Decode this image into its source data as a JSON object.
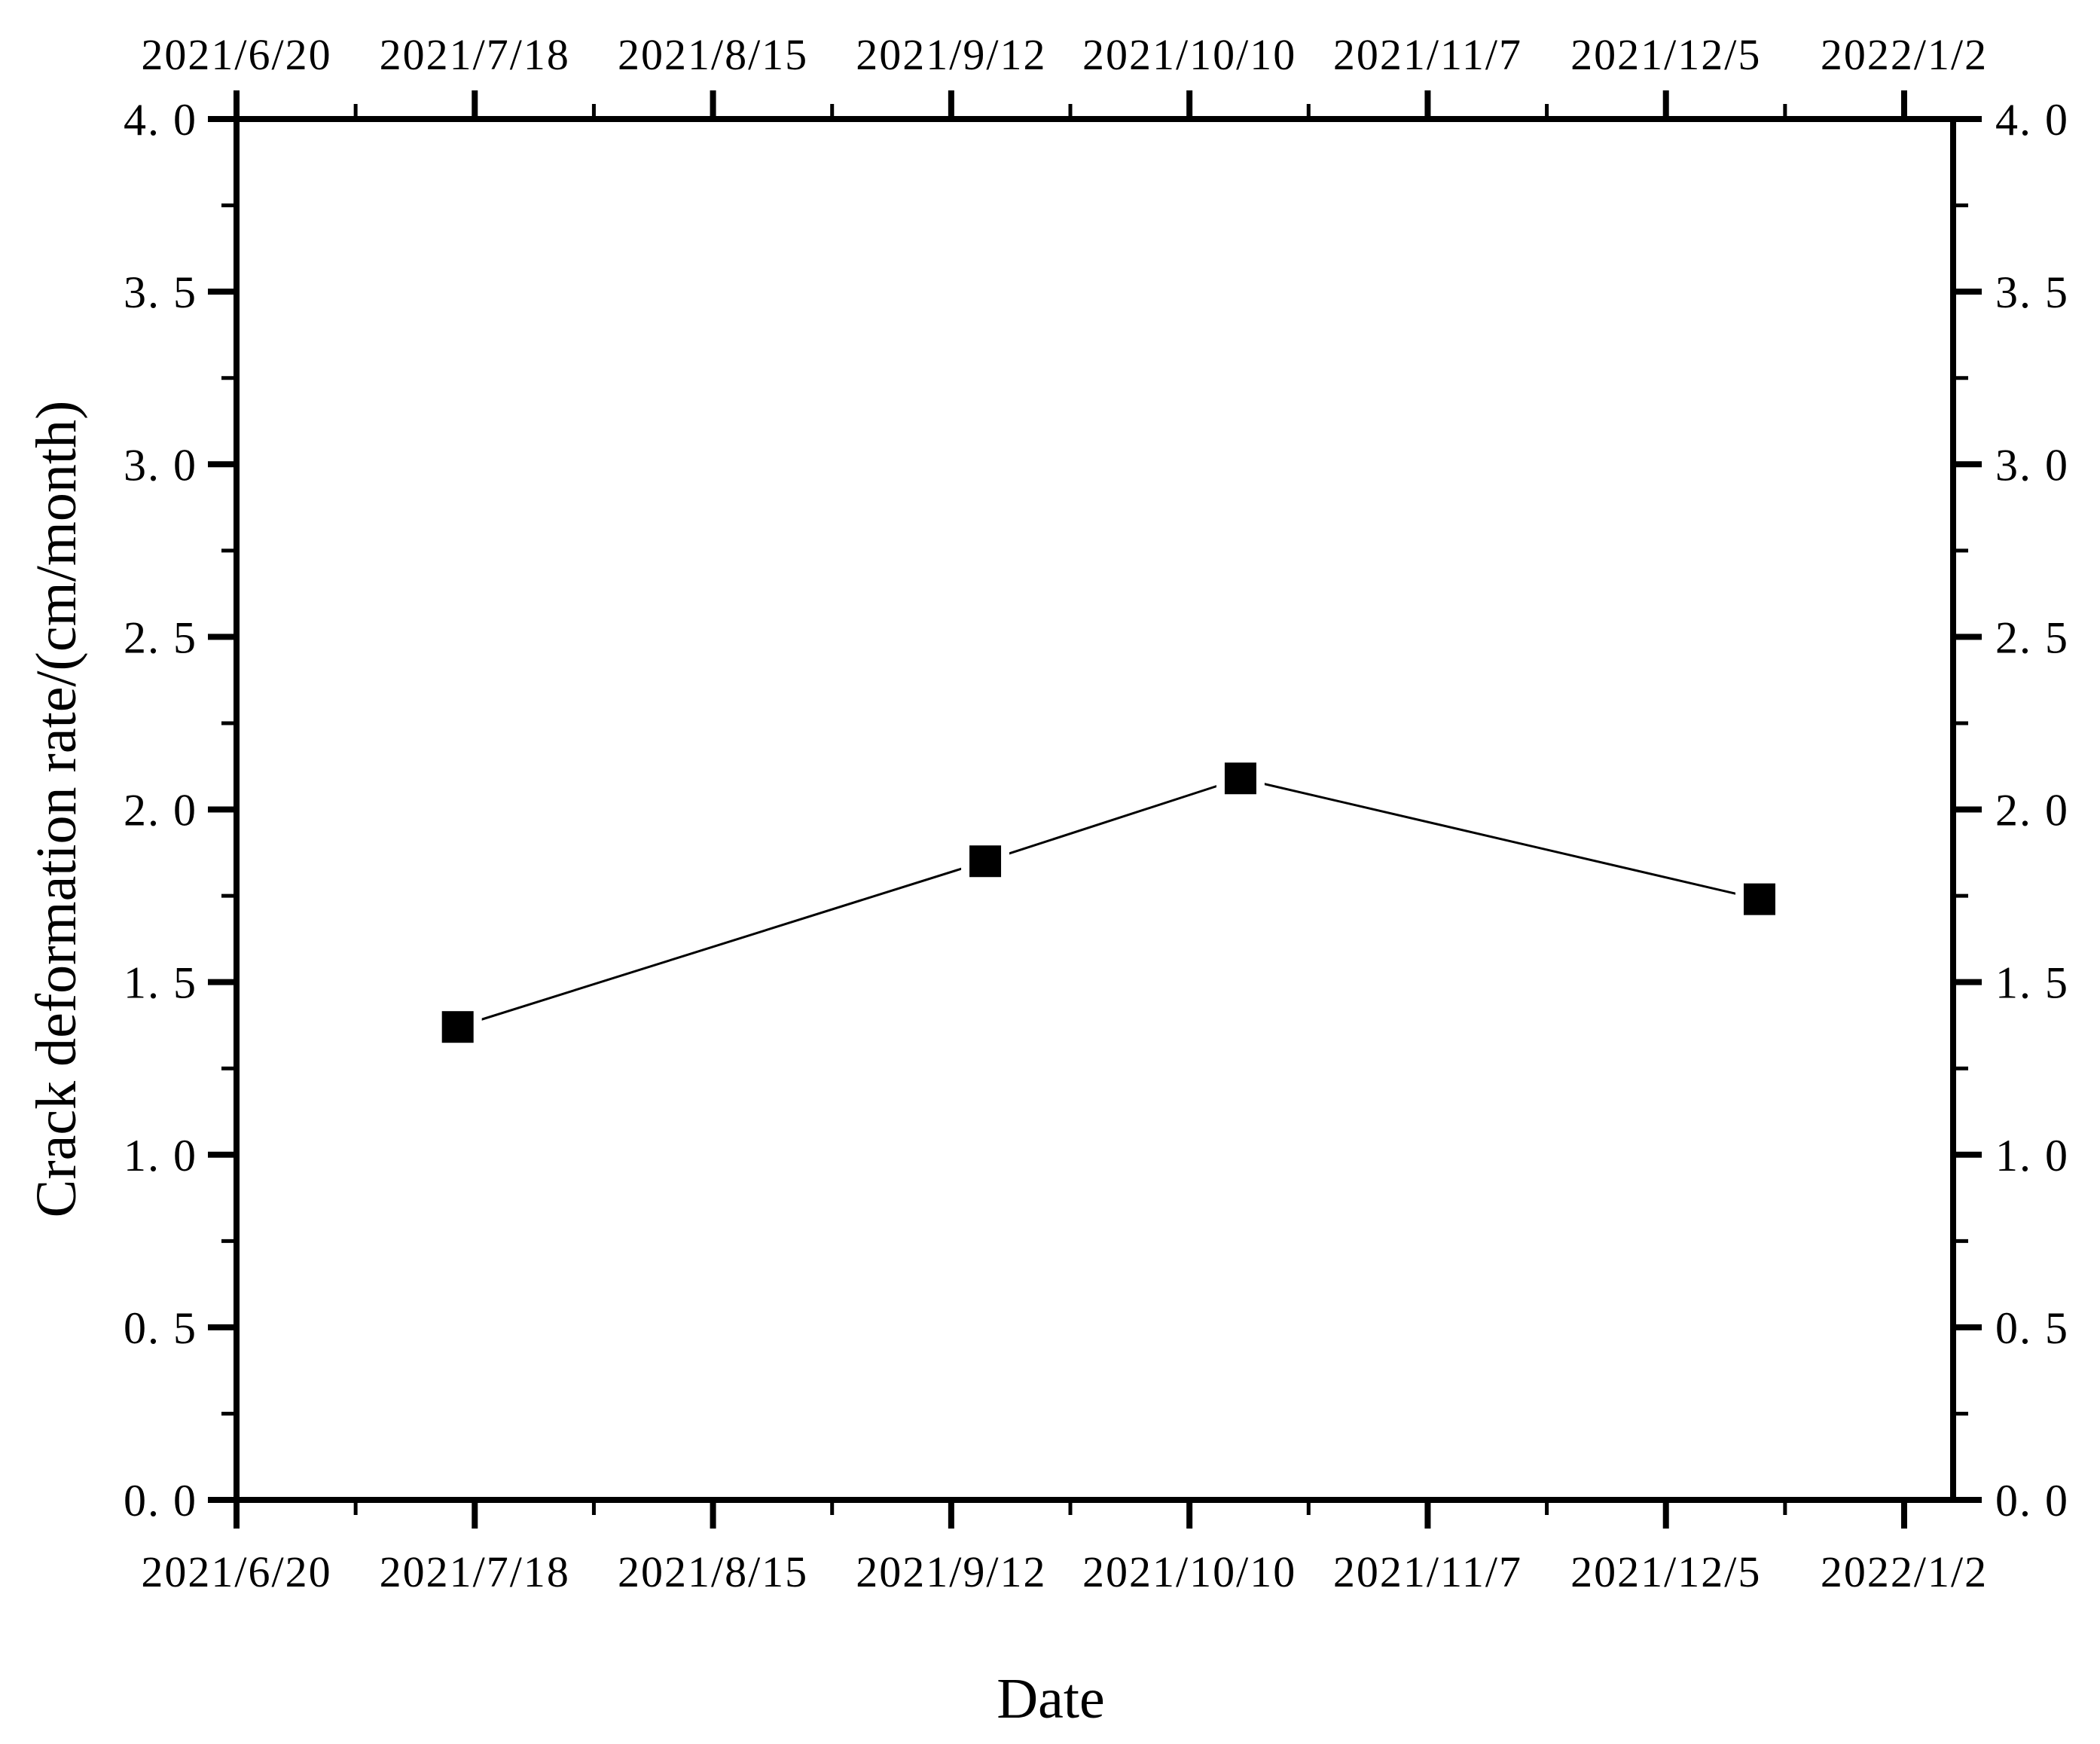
{
  "figure": {
    "background_color": "#ffffff",
    "ink_color": "#000000"
  },
  "chart_data": {
    "type": "line",
    "title": "",
    "xlabel": "Date",
    "ylabel": "Crack deformation rate/(cm/month)",
    "grid": false,
    "legend": null,
    "tick_style": "outward, mirrored on all four sides",
    "x_axis": {
      "start_date": "2021/6/20",
      "end_date": "2022/1/2",
      "major_tick_labels": [
        "2021/6/20",
        "2021/7/18",
        "2021/8/15",
        "2021/9/12",
        "2021/10/10",
        "2021/11/7",
        "2021/12/5",
        "2022/1/2"
      ],
      "major_tick_days": [
        0,
        28,
        56,
        84,
        112,
        140,
        168,
        196
      ],
      "minor_tick_days": [
        14,
        42,
        70,
        98,
        126,
        154,
        182
      ],
      "domain_days": [
        0,
        201.75
      ],
      "labels_shown_on": [
        "top",
        "bottom"
      ]
    },
    "y_axis": {
      "ylim": [
        0,
        4
      ],
      "major_ticks": [
        0.0,
        0.5,
        1.0,
        1.5,
        2.0,
        2.5,
        3.0,
        3.5,
        4.0
      ],
      "major_tick_labels": [
        "0. 0",
        "0. 5",
        "1. 0",
        "1. 5",
        "2. 0",
        "2. 5",
        "3. 0",
        "3. 5",
        "4. 0"
      ],
      "minor_ticks": [
        0.25,
        0.75,
        1.25,
        1.75,
        2.25,
        2.75,
        3.25,
        3.75
      ],
      "labels_shown_on": [
        "left",
        "right"
      ]
    },
    "series": [
      {
        "name": "Crack deformation rate",
        "marker": "filled-square",
        "line_style": "solid-thin",
        "color": "#000000",
        "points": [
          {
            "date": "2021/7/16",
            "day": 26,
            "value": 1.37
          },
          {
            "date": "2021/9/16",
            "day": 88,
            "value": 1.85
          },
          {
            "date": "2021/10/16",
            "day": 118,
            "value": 2.09
          },
          {
            "date": "2021/12/16",
            "day": 179,
            "value": 1.74
          }
        ]
      }
    ]
  }
}
